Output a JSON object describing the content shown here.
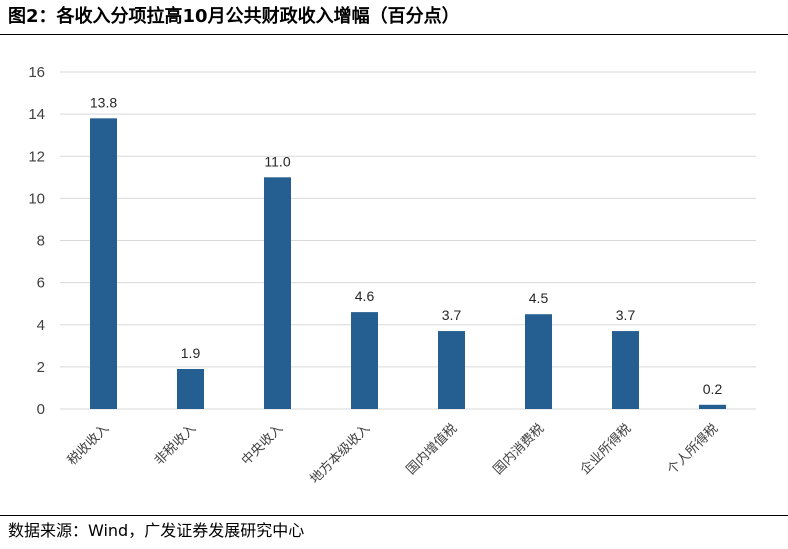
{
  "header": {
    "title": "图2：各收入分项拉高10月公共财政收入增幅（百分点）"
  },
  "footer": {
    "source": "数据来源：Wind，广发证券发展研究中心"
  },
  "chart_data": {
    "type": "bar",
    "title": "图2：各收入分项拉高10月公共财政收入增幅（百分点）",
    "xlabel": "",
    "ylabel": "",
    "categories": [
      "税收收入",
      "非税收入",
      "中央收入",
      "地方本级收入",
      "国内增值税",
      "国内消费税",
      "企业所得税",
      "个人所得税"
    ],
    "values": [
      13.8,
      1.9,
      11.0,
      4.6,
      3.7,
      4.5,
      3.7,
      0.2
    ],
    "value_labels": [
      "13.8",
      "1.9",
      "11.0",
      "4.6",
      "3.7",
      "4.5",
      "3.7",
      "0.2"
    ],
    "ylim": [
      0,
      16
    ],
    "yticks": [
      0,
      2,
      4,
      6,
      8,
      10,
      12,
      14,
      16
    ],
    "grid": true,
    "legend": "none",
    "bar_color": "#255E91",
    "grid_color": "#D9D9D9"
  }
}
